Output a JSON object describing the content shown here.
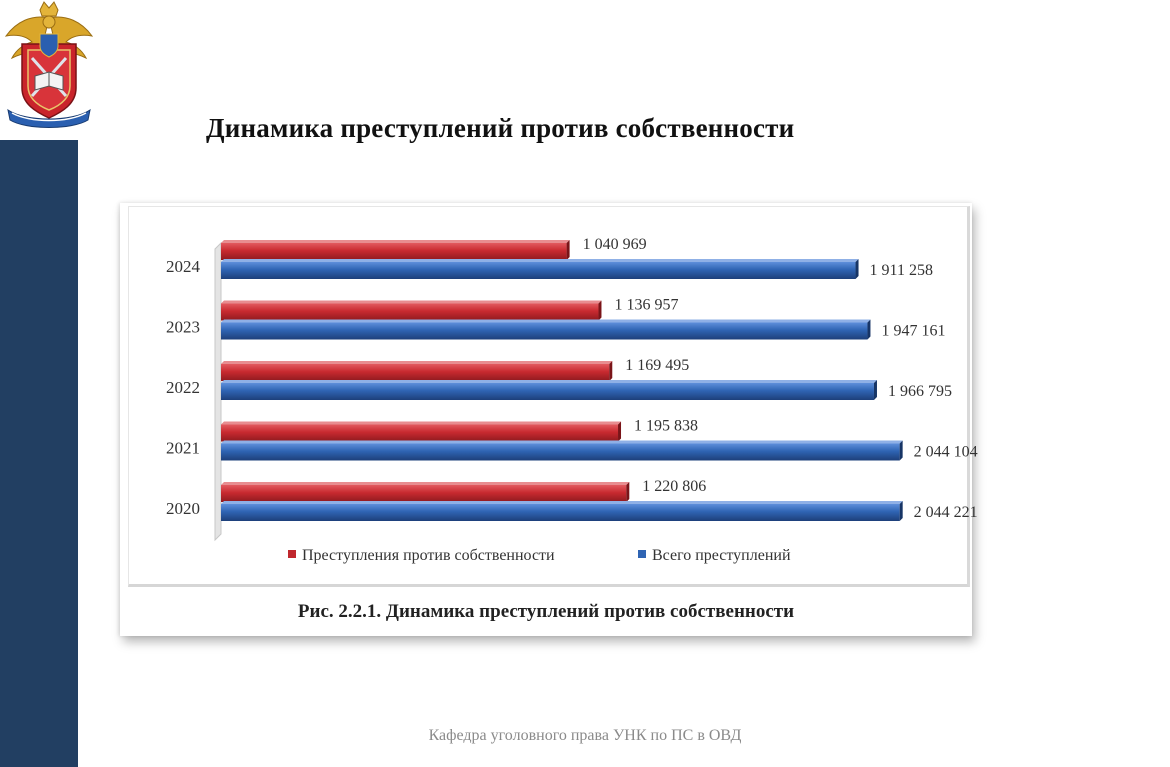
{
  "slide": {
    "title": "Динамика преступлений против собственности",
    "footer": "Кафедра уголовного права УНК по ПС в ОВД"
  },
  "colors": {
    "sidebar": "#223f62",
    "series_property": "#c0272d",
    "series_total": "#2f64b3"
  },
  "icons": {
    "logo": "police-academy-emblem-icon"
  },
  "chart_data": {
    "type": "bar",
    "orientation": "horizontal",
    "categories": [
      "2024",
      "2023",
      "2022",
      "2021",
      "2020"
    ],
    "series": [
      {
        "name": "Преступления против собственности",
        "values": [
          1040969,
          1136957,
          1169495,
          1195838,
          1220806
        ],
        "labels": [
          "1 040 969",
          "1 136 957",
          "1 169 495",
          "1 195 838",
          "1 220 806"
        ]
      },
      {
        "name": "Всего преступлений",
        "values": [
          1911258,
          1947161,
          1966795,
          2044104,
          2044221
        ],
        "labels": [
          "1 911 258",
          "1 947 161",
          "1 966 795",
          "2 044 104",
          "2 044 221"
        ]
      }
    ],
    "caption": "Рис. 2.2.1. Динамика преступлений против собственности",
    "legend_position": "bottom",
    "grid": false
  }
}
